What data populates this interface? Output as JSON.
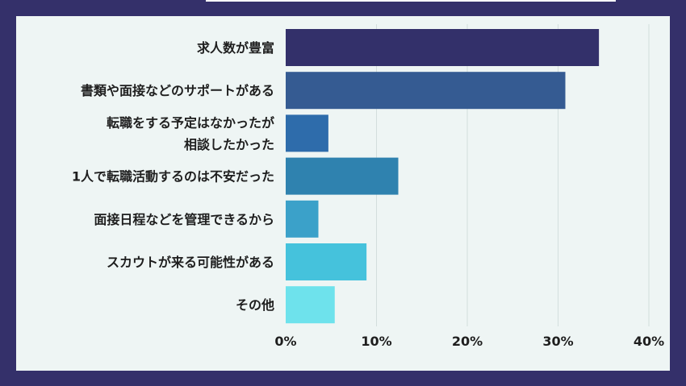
{
  "chart_data": {
    "type": "bar",
    "orientation": "horizontal",
    "categories": [
      [
        "求人数が豊富"
      ],
      [
        "書類や面接などのサポートがある"
      ],
      [
        "転職をする予定はなかったが",
        "相談したかった"
      ],
      [
        "1人で転職活動するのは不安だった"
      ],
      [
        "面接日程などを管理できるから"
      ],
      [
        "スカウトが来る可能性がある"
      ],
      [
        "その他"
      ]
    ],
    "values": [
      34.5,
      30.8,
      4.7,
      12.4,
      3.6,
      8.9,
      5.4
    ],
    "colors": [
      "#33306a",
      "#355b92",
      "#2e6cab",
      "#2f82af",
      "#3ba1c9",
      "#45c2dc",
      "#6ee2ec"
    ],
    "xlim": [
      0,
      40
    ],
    "xticks": [
      "0%",
      "10%",
      "20%",
      "30%",
      "40%"
    ],
    "grid": true,
    "title": "",
    "xlabel": "",
    "ylabel": ""
  }
}
